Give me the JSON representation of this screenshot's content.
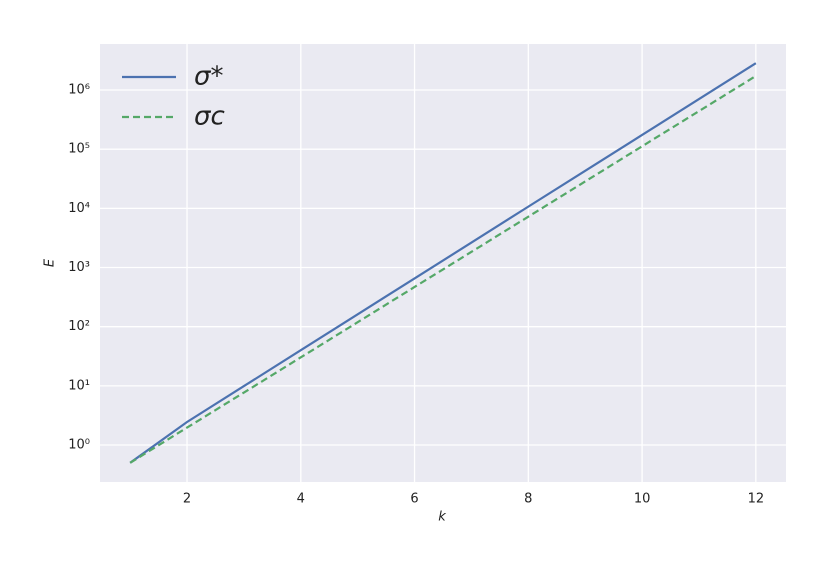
{
  "chart_data": {
    "type": "line",
    "xlabel": "k",
    "ylabel": "E",
    "x": [
      1,
      2,
      3,
      4,
      5,
      6,
      7,
      8,
      9,
      10,
      11,
      12
    ],
    "series": [
      {
        "name": "σ*",
        "color": "#4c72b0",
        "dash": false,
        "values": [
          0.5,
          2.45,
          9.9,
          40,
          162,
          654,
          2640,
          10700,
          43200,
          174000,
          704000,
          2840000
        ]
      },
      {
        "name": "σc",
        "color": "#55a868",
        "dash": true,
        "values": [
          0.5,
          1.97,
          7.7,
          30.3,
          119,
          469,
          1840,
          7240,
          28500,
          112000,
          440000,
          1730000
        ]
      }
    ],
    "xlim": [
      0.47,
      12.53
    ],
    "xticks": [
      2,
      4,
      6,
      8,
      10,
      12
    ],
    "ylim": [
      0.237,
      6000000
    ],
    "log_y": true,
    "yticks": [
      {
        "value": 1,
        "label": "10⁰"
      },
      {
        "value": 10,
        "label": "10¹"
      },
      {
        "value": 100,
        "label": "10²"
      },
      {
        "value": 1000,
        "label": "10³"
      },
      {
        "value": 10000,
        "label": "10⁴"
      },
      {
        "value": 100000,
        "label": "10⁵"
      },
      {
        "value": 1000000,
        "label": "10⁶"
      }
    ],
    "grid": true,
    "legend": "upper left"
  }
}
